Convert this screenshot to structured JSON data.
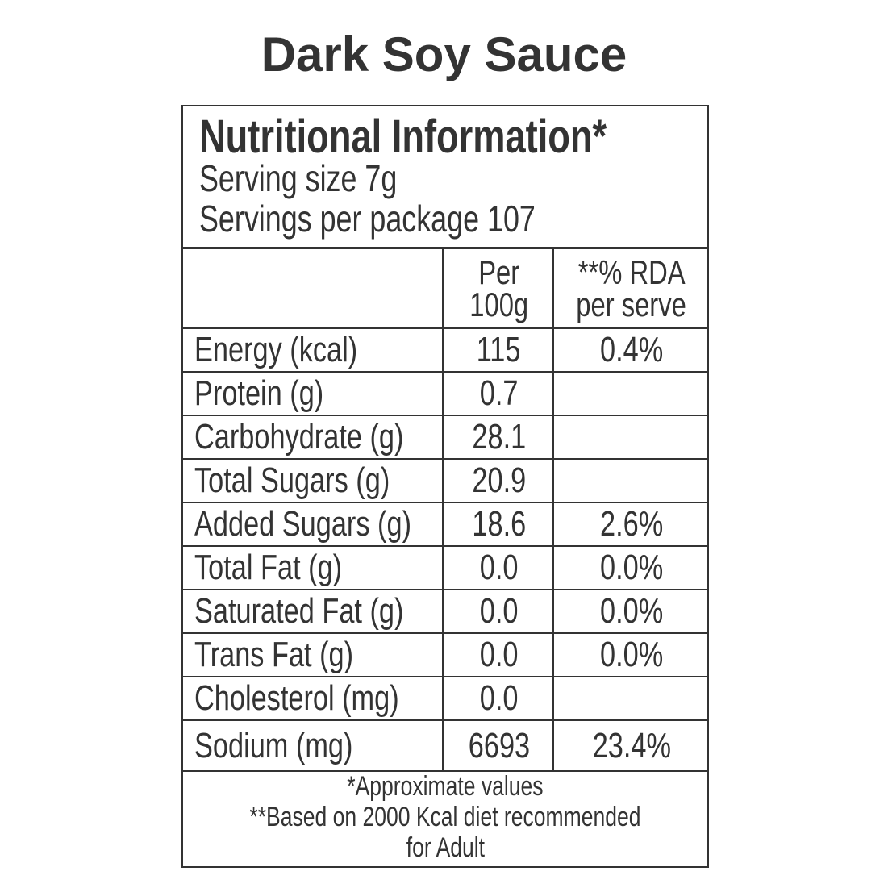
{
  "title": "Dark Soy Sauce",
  "panel": {
    "heading": "Nutritional Information*",
    "serving_size": "Serving size 7g",
    "servings_per_package": "Servings per package 107"
  },
  "columns": {
    "per100g": [
      "Per",
      "100g"
    ],
    "rda": [
      "**% RDA",
      "per serve"
    ]
  },
  "rows": [
    {
      "name": "Energy (kcal)",
      "per100g": "115",
      "rda": "0.4%"
    },
    {
      "name": "Protein (g)",
      "per100g": "0.7",
      "rda": ""
    },
    {
      "name": "Carbohydrate (g)",
      "per100g": "28.1",
      "rda": ""
    },
    {
      "name": "Total Sugars (g)",
      "per100g": "20.9",
      "rda": ""
    },
    {
      "name": "Added Sugars (g)",
      "per100g": "18.6",
      "rda": "2.6%"
    },
    {
      "name": "Total Fat (g)",
      "per100g": "0.0",
      "rda": "0.0%"
    },
    {
      "name": "Saturated Fat (g)",
      "per100g": "0.0",
      "rda": "0.0%"
    },
    {
      "name": "Trans Fat (g)",
      "per100g": "0.0",
      "rda": "0.0%"
    },
    {
      "name": "Cholesterol (mg)",
      "per100g": "0.0",
      "rda": ""
    },
    {
      "name": "Sodium (mg)",
      "per100g": "6693",
      "rda": "23.4%"
    }
  ],
  "footnotes": [
    "*Approximate values",
    "**Based on 2000 Kcal diet recommended",
    "for Adult"
  ]
}
